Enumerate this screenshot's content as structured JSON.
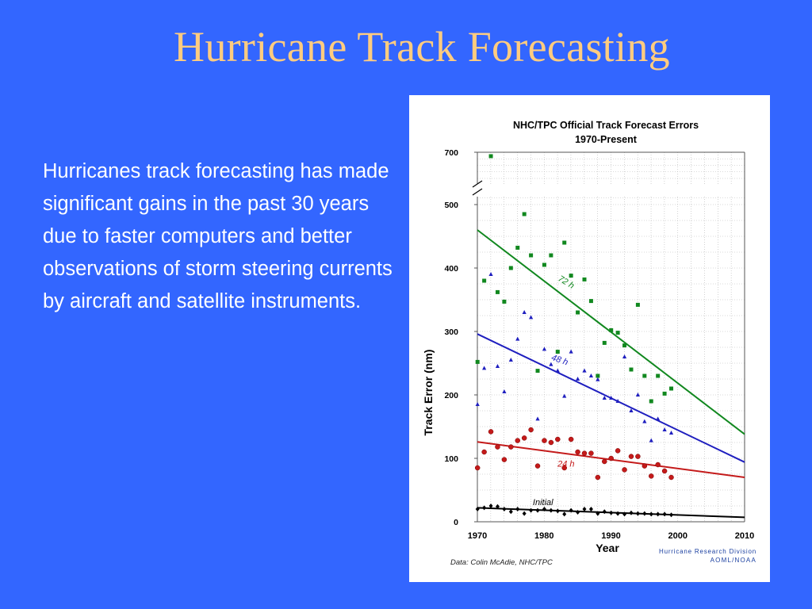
{
  "slide": {
    "title": "Hurricane Track Forecasting",
    "body": "Hurricanes track forecasting has made significant gains in the past 30 years due to faster computers and better observations of storm steering currents by aircraft and satellite instruments."
  },
  "chart_data": {
    "type": "scatter",
    "title": "NHC/TPC Official Track Forecast Errors",
    "subtitle": "1970-Present",
    "xlabel": "Year",
    "ylabel": "Track Error (nm)",
    "xlim": [
      1970,
      2010
    ],
    "ylim": [
      0,
      700
    ],
    "x_ticks": [
      "1970",
      "1980",
      "1990",
      "2000",
      "2010"
    ],
    "y_ticks": [
      "0",
      "100",
      "200",
      "300",
      "400",
      "500",
      "700"
    ],
    "axis_break": "between 500 and 700",
    "grid": true,
    "credit": "Data: Colin McAdie, NHC/TPC",
    "organization": [
      "Hurricane Research Division",
      "AOML/NOAA"
    ],
    "series": [
      {
        "name": "72 h",
        "color": "#11881f",
        "marker": "square",
        "x": [
          1970,
          1971,
          1972,
          1973,
          1974,
          1975,
          1976,
          1977,
          1978,
          1979,
          1980,
          1981,
          1982,
          1983,
          1984,
          1985,
          1986,
          1987,
          1988,
          1989,
          1990,
          1991,
          1992,
          1993,
          1994,
          1995,
          1996,
          1997,
          1998,
          1999
        ],
        "y": [
          252,
          380,
          685,
          362,
          347,
          400,
          432,
          485,
          420,
          238,
          405,
          420,
          268,
          440,
          388,
          330,
          382,
          348,
          230,
          282,
          302,
          298,
          278,
          240,
          342,
          230,
          190,
          230,
          202,
          210
        ],
        "trend": [
          460,
          138
        ]
      },
      {
        "name": "48 h",
        "color": "#1f1fbf",
        "marker": "triangle",
        "x": [
          1970,
          1971,
          1972,
          1973,
          1974,
          1975,
          1976,
          1977,
          1978,
          1979,
          1980,
          1981,
          1982,
          1983,
          1984,
          1985,
          1986,
          1987,
          1988,
          1989,
          1990,
          1991,
          1992,
          1993,
          1994,
          1995,
          1996,
          1997,
          1998,
          1999
        ],
        "y": [
          185,
          242,
          390,
          245,
          205,
          255,
          288,
          330,
          322,
          162,
          272,
          248,
          238,
          198,
          268,
          225,
          238,
          230,
          224,
          195,
          195,
          190,
          260,
          175,
          200,
          158,
          128,
          162,
          145,
          140
        ],
        "trend": [
          296,
          94
        ]
      },
      {
        "name": "24 h",
        "color": "#c41a1a",
        "marker": "circle",
        "x": [
          1970,
          1971,
          1972,
          1973,
          1974,
          1975,
          1976,
          1977,
          1978,
          1979,
          1980,
          1981,
          1982,
          1983,
          1984,
          1985,
          1986,
          1987,
          1988,
          1989,
          1990,
          1991,
          1992,
          1993,
          1994,
          1995,
          1996,
          1997,
          1998,
          1999
        ],
        "y": [
          85,
          110,
          142,
          118,
          98,
          118,
          128,
          132,
          145,
          88,
          128,
          125,
          130,
          85,
          130,
          110,
          108,
          108,
          70,
          95,
          100,
          112,
          82,
          103,
          103,
          88,
          72,
          90,
          80,
          70
        ],
        "trend": [
          126,
          70
        ]
      },
      {
        "name": "Initial",
        "color": "#000000",
        "marker": "diamond",
        "x": [
          1970,
          1971,
          1972,
          1973,
          1974,
          1975,
          1976,
          1977,
          1978,
          1979,
          1980,
          1981,
          1982,
          1983,
          1984,
          1985,
          1986,
          1987,
          1988,
          1989,
          1990,
          1991,
          1992,
          1993,
          1994,
          1995,
          1996,
          1997,
          1998,
          1999
        ],
        "y": [
          20,
          22,
          25,
          24,
          20,
          16,
          20,
          13,
          18,
          18,
          20,
          18,
          17,
          12,
          18,
          15,
          20,
          20,
          13,
          16,
          14,
          13,
          12,
          14,
          13,
          13,
          12,
          12,
          12,
          11
        ],
        "trend": [
          22,
          7
        ]
      }
    ]
  }
}
